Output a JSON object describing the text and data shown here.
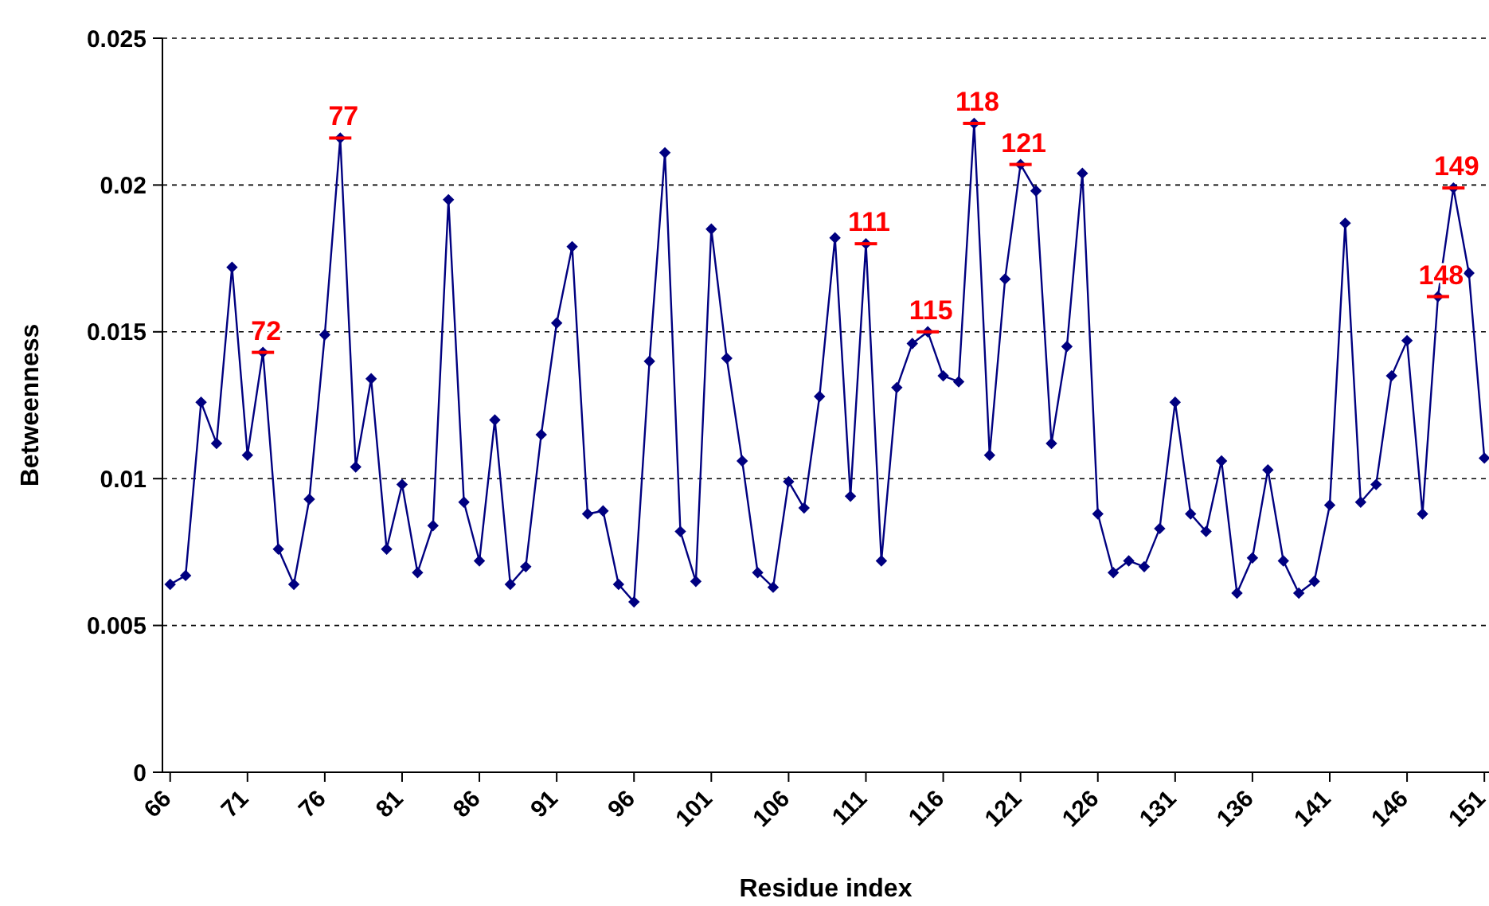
{
  "chart_data": {
    "type": "line",
    "xlabel": "Residue index",
    "ylabel": "Betweenness",
    "x": [
      66,
      67,
      68,
      69,
      70,
      71,
      72,
      73,
      74,
      75,
      76,
      77,
      78,
      79,
      80,
      81,
      82,
      83,
      84,
      85,
      86,
      87,
      88,
      89,
      90,
      91,
      92,
      93,
      94,
      95,
      96,
      97,
      98,
      99,
      100,
      101,
      102,
      103,
      104,
      105,
      106,
      107,
      108,
      109,
      110,
      111,
      112,
      113,
      114,
      115,
      116,
      117,
      118,
      119,
      120,
      121,
      122,
      123,
      124,
      125,
      126,
      127,
      128,
      129,
      130,
      131,
      132,
      133,
      134,
      135,
      136,
      137,
      138,
      139,
      140,
      141,
      142,
      143,
      144,
      145,
      146,
      147,
      148,
      149,
      150,
      151
    ],
    "series": [
      {
        "color": "#000080",
        "values": [
          0.0064,
          0.0067,
          0.0126,
          0.0112,
          0.0172,
          0.0108,
          0.0143,
          0.0076,
          0.0064,
          0.0093,
          0.0149,
          0.0216,
          0.0104,
          0.0134,
          0.0076,
          0.0098,
          0.0068,
          0.0084,
          0.0195,
          0.0092,
          0.0072,
          0.012,
          0.0064,
          0.007,
          0.0115,
          0.0153,
          0.0179,
          0.0088,
          0.0089,
          0.0064,
          0.0058,
          0.014,
          0.0211,
          0.0082,
          0.0065,
          0.0185,
          0.0141,
          0.0106,
          0.0068,
          0.0063,
          0.0099,
          0.009,
          0.0128,
          0.0182,
          0.0094,
          0.018,
          0.0072,
          0.0131,
          0.0146,
          0.015,
          0.0135,
          0.0133,
          0.0221,
          0.0108,
          0.0168,
          0.0207,
          0.0198,
          0.0112,
          0.0145,
          0.0204,
          0.0088,
          0.0068,
          0.0072,
          0.007,
          0.0083,
          0.0126,
          0.0088,
          0.0082,
          0.0106,
          0.0061,
          0.0073,
          0.0103,
          0.0072,
          0.0061,
          0.0065,
          0.0091,
          0.0187,
          0.0092,
          0.0098,
          0.0135,
          0.0147,
          0.0088,
          0.0162,
          0.0199,
          0.017,
          0.0107
        ]
      }
    ],
    "xlim": [
      65.5,
      151.3
    ],
    "xticks": [
      66,
      71,
      76,
      81,
      86,
      91,
      96,
      101,
      106,
      111,
      116,
      121,
      126,
      131,
      136,
      141,
      146,
      151
    ],
    "ylim": [
      0,
      0.025
    ],
    "yticks": [
      0,
      0.005,
      0.01,
      0.015,
      0.02,
      0.025
    ],
    "grid": "y",
    "marker": "diamond",
    "line_style": "solid",
    "annotations": [
      {
        "text": "72",
        "x": 72,
        "y": 0.0143
      },
      {
        "text": "77",
        "x": 77,
        "y": 0.0216
      },
      {
        "text": "111",
        "x": 111,
        "y": 0.018
      },
      {
        "text": "115",
        "x": 115,
        "y": 0.015
      },
      {
        "text": "118",
        "x": 118,
        "y": 0.0221
      },
      {
        "text": "121",
        "x": 121,
        "y": 0.0207
      },
      {
        "text": "148",
        "x": 148,
        "y": 0.0162
      },
      {
        "text": "149",
        "x": 149,
        "y": 0.0199
      }
    ]
  }
}
